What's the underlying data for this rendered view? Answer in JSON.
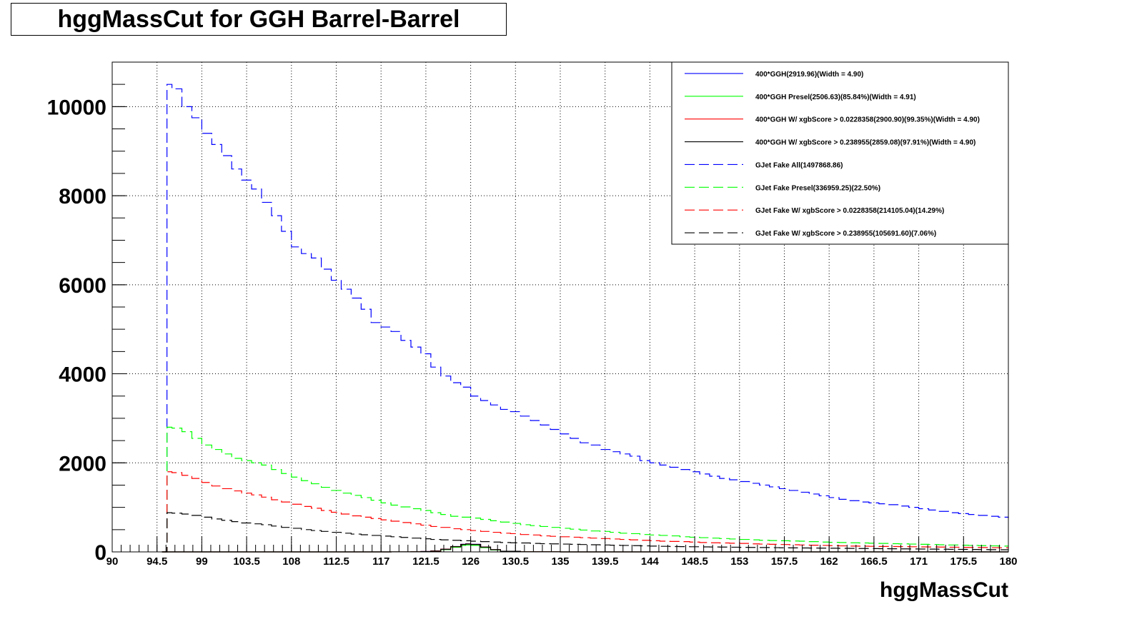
{
  "chart_data": {
    "type": "line",
    "title": "hggMassCut for GGH Barrel-Barrel",
    "xlabel": "hggMassCut",
    "ylabel": "",
    "xlim": [
      90,
      180
    ],
    "ylim": [
      0,
      11000
    ],
    "grid": true,
    "legend_position": "top-right",
    "x_ticks": [
      90,
      94.5,
      99,
      103.5,
      108,
      112.5,
      117,
      121.5,
      126,
      130.5,
      135,
      139.5,
      144,
      148.5,
      153,
      157.5,
      162,
      166.5,
      171,
      175.5,
      180
    ],
    "x_tick_labels": [
      "90",
      "94.5",
      "99",
      "103.5",
      "108",
      "112.5",
      "117",
      "121.5",
      "126",
      "130.5",
      "135",
      "139.5",
      "144",
      "148.5",
      "153",
      "157.5",
      "162",
      "166.5",
      "171",
      "175.5",
      "180"
    ],
    "y_ticks": [
      0,
      2000,
      4000,
      6000,
      8000,
      10000
    ],
    "y_tick_labels": [
      "0",
      "2000",
      "4000",
      "6000",
      "8000",
      "10000"
    ],
    "series": [
      {
        "name": "400*GGH(2919.96)(Width = 4.90)",
        "color": "#0000ff",
        "style": "solid",
        "x": [
          95,
          115,
          118,
          120,
          121,
          122,
          123,
          124,
          125,
          125.5,
          126,
          127,
          128,
          129,
          131,
          135
        ],
        "y": [
          0,
          0,
          1,
          3,
          8,
          20,
          60,
          120,
          170,
          180,
          170,
          110,
          50,
          15,
          3,
          0
        ]
      },
      {
        "name": "400*GGH Presel(2506.63)(85.84%)(Width = 4.91)",
        "color": "#00ff00",
        "style": "solid",
        "x": [
          95,
          115,
          118,
          120,
          121,
          122,
          123,
          124,
          125,
          125.5,
          126,
          127,
          128,
          129,
          131,
          135
        ],
        "y": [
          0,
          0,
          1,
          3,
          7,
          17,
          52,
          103,
          146,
          155,
          146,
          95,
          43,
          13,
          3,
          0
        ]
      },
      {
        "name": "400*GGH W/ xgbScore > 0.0228358(2900.90)(99.35%)(Width = 4.90)",
        "color": "#ff0000",
        "style": "solid",
        "x": [
          95,
          115,
          118,
          120,
          121,
          122,
          123,
          124,
          125,
          125.5,
          126,
          127,
          128,
          129,
          131,
          135
        ],
        "y": [
          0,
          0,
          1,
          3,
          8,
          20,
          60,
          119,
          169,
          179,
          169,
          109,
          50,
          15,
          3,
          0
        ]
      },
      {
        "name": "400*GGH W/ xgbScore > 0.238955(2859.08)(97.91%)(Width = 4.90)",
        "color": "#000000",
        "style": "solid",
        "x": [
          95,
          115,
          118,
          120,
          121,
          122,
          123,
          124,
          125,
          125.5,
          126,
          127,
          128,
          129,
          131,
          135
        ],
        "y": [
          0,
          0,
          1,
          3,
          8,
          19,
          58,
          117,
          166,
          176,
          166,
          108,
          49,
          15,
          3,
          0
        ]
      },
      {
        "name": "GJet Fake All(1497868.86)",
        "color": "#0000ff",
        "style": "dashed",
        "x": [
          95,
          95.5,
          96,
          97,
          98,
          99,
          100,
          101,
          102,
          103,
          104,
          105,
          106,
          107,
          108,
          109,
          110,
          111,
          112,
          113,
          114,
          115,
          116,
          117,
          118,
          119,
          120,
          121,
          122,
          123,
          124,
          125,
          126,
          127,
          128,
          129,
          130,
          131,
          132,
          133,
          134,
          135,
          136,
          137,
          138,
          139,
          140,
          141,
          142,
          143,
          144,
          145,
          146,
          147,
          148,
          149,
          150,
          151,
          152,
          153,
          154,
          155,
          156,
          157,
          158,
          159,
          160,
          161,
          162,
          163,
          164,
          165,
          166,
          167,
          168,
          169,
          170,
          171,
          172,
          173,
          174,
          175,
          176,
          177,
          178,
          179,
          180
        ],
        "y": [
          0,
          10500,
          10400,
          10000,
          9750,
          9400,
          9150,
          8900,
          8600,
          8350,
          8150,
          7850,
          7550,
          7200,
          6850,
          6700,
          6600,
          6350,
          6100,
          5900,
          5700,
          5450,
          5150,
          5050,
          4950,
          4750,
          4600,
          4450,
          4150,
          3950,
          3800,
          3700,
          3500,
          3400,
          3300,
          3200,
          3150,
          3050,
          2950,
          2850,
          2750,
          2650,
          2550,
          2450,
          2400,
          2300,
          2250,
          2200,
          2150,
          2050,
          2000,
          1950,
          1900,
          1850,
          1800,
          1750,
          1700,
          1650,
          1620,
          1580,
          1540,
          1500,
          1460,
          1420,
          1380,
          1340,
          1300,
          1260,
          1220,
          1180,
          1150,
          1120,
          1100,
          1080,
          1060,
          1030,
          1000,
          970,
          940,
          910,
          880,
          860,
          840,
          820,
          800,
          780,
          760
        ]
      },
      {
        "name": "GJet Fake Presel(336959.25)(22.50%)",
        "color": "#00ff00",
        "style": "dashed",
        "x": [
          95,
          95.5,
          96,
          97,
          98,
          99,
          100,
          101,
          102,
          103,
          104,
          105,
          106,
          107,
          108,
          109,
          110,
          111,
          112,
          113,
          114,
          115,
          116,
          117,
          118,
          119,
          120,
          121,
          122,
          123,
          124,
          125,
          126,
          127,
          128,
          129,
          130,
          131,
          132,
          133,
          134,
          135,
          136,
          137,
          138,
          139,
          140,
          141,
          142,
          143,
          144,
          145,
          146,
          147,
          148,
          149,
          150,
          151,
          152,
          153,
          154,
          155,
          156,
          157,
          158,
          159,
          160,
          161,
          162,
          163,
          164,
          165,
          166,
          167,
          168,
          169,
          170,
          171,
          172,
          173,
          174,
          175,
          176,
          177,
          178,
          179,
          180
        ],
        "y": [
          0,
          2800,
          2780,
          2700,
          2550,
          2400,
          2300,
          2200,
          2100,
          2050,
          2000,
          1950,
          1850,
          1760,
          1680,
          1600,
          1530,
          1450,
          1380,
          1320,
          1270,
          1220,
          1160,
          1100,
          1050,
          1010,
          970,
          930,
          880,
          840,
          800,
          780,
          760,
          730,
          700,
          670,
          640,
          610,
          590,
          570,
          550,
          530,
          510,
          490,
          470,
          460,
          440,
          420,
          410,
          390,
          380,
          370,
          360,
          340,
          330,
          320,
          310,
          300,
          290,
          280,
          270,
          260,
          255,
          250,
          245,
          240,
          230,
          220,
          215,
          210,
          205,
          200,
          195,
          190,
          185,
          180,
          175,
          170,
          165,
          160,
          155,
          150,
          145,
          140,
          135,
          130,
          125
        ]
      },
      {
        "name": "GJet Fake W/ xgbScore > 0.0228358(214105.04)(14.29%)",
        "color": "#ff0000",
        "style": "dashed",
        "x": [
          95,
          95.5,
          96,
          97,
          98,
          99,
          100,
          101,
          102,
          103,
          104,
          105,
          106,
          107,
          108,
          109,
          110,
          111,
          112,
          113,
          114,
          115,
          116,
          117,
          118,
          119,
          120,
          121,
          122,
          123,
          124,
          125,
          126,
          127,
          128,
          129,
          130,
          131,
          132,
          133,
          134,
          135,
          136,
          137,
          138,
          139,
          140,
          141,
          142,
          143,
          144,
          145,
          146,
          147,
          148,
          149,
          150,
          151,
          152,
          153,
          154,
          155,
          156,
          157,
          158,
          159,
          160,
          161,
          162,
          163,
          164,
          165,
          166,
          167,
          168,
          169,
          170,
          171,
          172,
          173,
          174,
          175,
          176,
          177,
          178,
          179,
          180
        ],
        "y": [
          0,
          1800,
          1780,
          1720,
          1650,
          1560,
          1480,
          1420,
          1370,
          1320,
          1280,
          1230,
          1170,
          1120,
          1070,
          1020,
          980,
          930,
          890,
          850,
          810,
          780,
          750,
          720,
          690,
          660,
          630,
          600,
          570,
          550,
          520,
          500,
          480,
          460,
          440,
          420,
          410,
          390,
          380,
          360,
          350,
          340,
          330,
          320,
          310,
          300,
          290,
          280,
          270,
          260,
          250,
          240,
          235,
          230,
          220,
          210,
          205,
          200,
          195,
          190,
          180,
          175,
          170,
          165,
          160,
          155,
          150,
          145,
          140,
          135,
          130,
          128,
          125,
          122,
          120,
          118,
          115,
          112,
          110,
          108,
          105,
          102,
          100,
          98,
          95,
          92,
          90
        ]
      },
      {
        "name": "GJet Fake W/ xgbScore > 0.238955(105691.60)(7.06%)",
        "color": "#000000",
        "style": "dashed",
        "x": [
          95,
          95.5,
          96,
          97,
          98,
          99,
          100,
          101,
          102,
          103,
          104,
          105,
          106,
          107,
          108,
          109,
          110,
          111,
          112,
          113,
          114,
          115,
          116,
          117,
          118,
          119,
          120,
          121,
          122,
          123,
          124,
          125,
          126,
          127,
          128,
          129,
          130,
          131,
          132,
          133,
          134,
          135,
          136,
          137,
          138,
          139,
          140,
          141,
          142,
          143,
          144,
          145,
          146,
          147,
          148,
          149,
          150,
          151,
          152,
          153,
          154,
          155,
          156,
          157,
          158,
          159,
          160,
          161,
          162,
          163,
          164,
          165,
          166,
          167,
          168,
          169,
          170,
          171,
          172,
          173,
          174,
          175,
          176,
          177,
          178,
          179,
          180
        ],
        "y": [
          0,
          880,
          870,
          850,
          820,
          780,
          740,
          710,
          680,
          650,
          630,
          610,
          580,
          550,
          530,
          500,
          480,
          460,
          440,
          420,
          400,
          385,
          370,
          355,
          340,
          325,
          310,
          295,
          280,
          270,
          260,
          250,
          240,
          230,
          220,
          210,
          205,
          200,
          190,
          185,
          180,
          175,
          170,
          165,
          160,
          155,
          150,
          145,
          140,
          135,
          130,
          125,
          120,
          118,
          115,
          112,
          110,
          108,
          105,
          102,
          100,
          98,
          95,
          92,
          90,
          88,
          86,
          84,
          82,
          80,
          78,
          76,
          74,
          72,
          70,
          68,
          66,
          64,
          62,
          60,
          58,
          56,
          54,
          52,
          50,
          48,
          46
        ]
      }
    ]
  }
}
